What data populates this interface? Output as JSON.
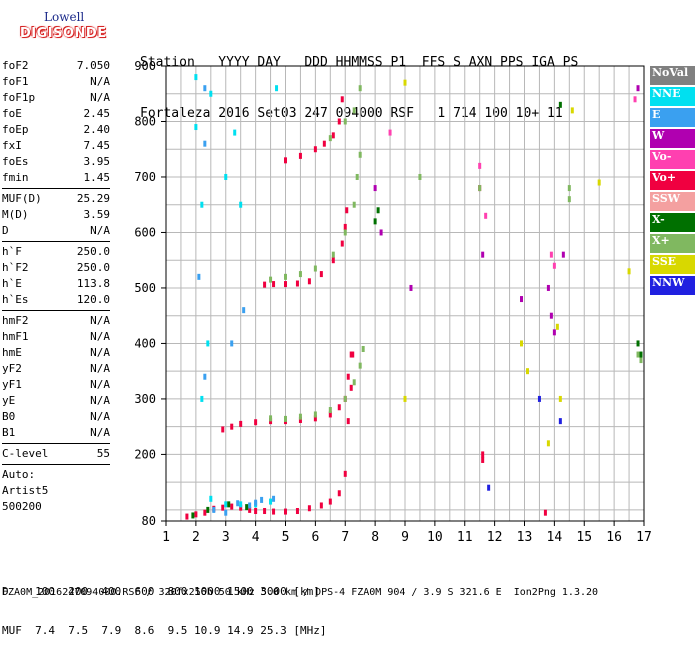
{
  "logo": {
    "line1": "Lowell",
    "line2": "DIGISONDE"
  },
  "header": {
    "row1": "Station   YYYY DAY   DDD HHMMSS P1  FFS S AXN PPS IGA PS",
    "row2": "Fortaleza 2016 Set03 247 094000 RSF   1 714 100 10+ 11"
  },
  "params": [
    {
      "name": "foF2",
      "value": "7.050"
    },
    {
      "name": "foF1",
      "value": "N/A"
    },
    {
      "name": "foF1p",
      "value": "N/A"
    },
    {
      "name": "foE",
      "value": "2.45"
    },
    {
      "name": "foEp",
      "value": "2.40"
    },
    {
      "name": "fxI",
      "value": "7.45"
    },
    {
      "name": "foEs",
      "value": "3.95"
    },
    {
      "name": "fmin",
      "value": "1.45"
    },
    {
      "sep": true
    },
    {
      "name": "MUF(D)",
      "value": "25.29"
    },
    {
      "name": "M(D)",
      "value": "3.59"
    },
    {
      "name": "D",
      "value": "N/A"
    },
    {
      "sep": true
    },
    {
      "name": "h`F",
      "value": "250.0"
    },
    {
      "name": "h`F2",
      "value": "250.0"
    },
    {
      "name": "h`E",
      "value": "113.8"
    },
    {
      "name": "h`Es",
      "value": "120.0"
    },
    {
      "sep": true
    },
    {
      "name": "hmF2",
      "value": "N/A"
    },
    {
      "name": "hmF1",
      "value": "N/A"
    },
    {
      "name": "hmE",
      "value": "N/A"
    },
    {
      "name": "yF2",
      "value": "N/A"
    },
    {
      "name": "yF1",
      "value": "N/A"
    },
    {
      "name": "yE",
      "value": "N/A"
    },
    {
      "name": "B0",
      "value": "N/A"
    },
    {
      "name": "B1",
      "value": "N/A"
    },
    {
      "sep": true
    },
    {
      "name": "C-level",
      "value": "55"
    },
    {
      "sep": true
    },
    {
      "name": "Auto:",
      "value": ""
    },
    {
      "name": "Artist5",
      "value": ""
    },
    {
      "name": "500200",
      "value": ""
    }
  ],
  "legend": [
    {
      "label": "NoVal",
      "color": "#808080"
    },
    {
      "label": "NNE",
      "color": "#00e0f0"
    },
    {
      "label": "E",
      "color": "#3aa0f0"
    },
    {
      "label": "W",
      "color": "#b000b0"
    },
    {
      "label": "Vo-",
      "color": "#ff40b0"
    },
    {
      "label": "Vo+",
      "color": "#f00040"
    },
    {
      "label": "SSW",
      "color": "#f4a0a0"
    },
    {
      "label": "X-",
      "color": "#007000"
    },
    {
      "label": "X+",
      "color": "#80b860"
    },
    {
      "label": "SSE",
      "color": "#d8d800"
    },
    {
      "label": "NNW",
      "color": "#2020e0"
    }
  ],
  "footer": {
    "row1": "D    100  200  400  600  800 1000 1500 3000 [km]",
    "row2": "MUF  7.4  7.5  7.9  8.6  9.5 10.9 14.9 25.3 [MHz]"
  },
  "filename": "FZA0M_2016247094000.RSF / 320fx256h 50 kHz 5.0 km / DPS-4 FZA0M 904 / 3.9 S 321.6 E  Ion2Png 1.3.20",
  "chart_data": {
    "type": "scatter",
    "xlabel": "",
    "ylabel": "",
    "xlim": [
      1,
      17
    ],
    "ylim": [
      80,
      900
    ],
    "xticks": [
      1,
      2,
      3,
      4,
      5,
      6,
      7,
      8,
      9,
      10,
      11,
      12,
      13,
      14,
      15,
      16,
      17
    ],
    "yticks": [
      80,
      200,
      300,
      400,
      500,
      600,
      700,
      800,
      900
    ],
    "x_minor": 0.5,
    "grid": true,
    "series": [
      {
        "name": "Vo+",
        "color": "#f00040",
        "x": [
          1.7,
          2.0,
          2.3,
          2.6,
          2.9,
          3.2,
          3.5,
          3.8,
          4.0,
          4.3,
          4.6,
          5.0,
          5.4,
          5.8,
          6.2,
          6.5,
          6.8,
          7.0,
          7.1,
          7.2,
          7.25,
          2.9,
          3.2,
          3.5,
          4.0,
          4.5,
          5.0,
          5.5,
          6.0,
          6.5,
          6.8,
          7.0,
          7.1,
          7.2,
          4.3,
          4.6,
          5.0,
          5.4,
          5.8,
          6.2,
          6.6,
          6.9,
          7.0,
          7.05,
          5.0,
          5.5,
          6.0,
          6.3,
          6.6,
          6.8,
          6.9,
          11.6,
          11.6,
          11.5,
          13.7
        ],
        "y": [
          88,
          92,
          95,
          102,
          104,
          106,
          104,
          100,
          98,
          98,
          97,
          97,
          98,
          103,
          108,
          115,
          130,
          165,
          260,
          320,
          380,
          245,
          250,
          255,
          258,
          260,
          260,
          262,
          265,
          272,
          285,
          300,
          340,
          380,
          506,
          507,
          507,
          508,
          512,
          525,
          550,
          580,
          610,
          640,
          730,
          738,
          750,
          760,
          775,
          800,
          840,
          190,
          200,
          680,
          95
        ]
      },
      {
        "name": "X+",
        "color": "#80b860",
        "x": [
          4.5,
          5.0,
          5.5,
          6.0,
          6.5,
          7.0,
          7.3,
          7.5,
          7.6,
          4.5,
          5.0,
          5.5,
          6.0,
          6.6,
          7.0,
          7.3,
          7.4,
          7.5,
          6.5,
          7.0,
          7.3,
          7.5,
          9.5,
          11.5,
          14.5,
          14.5,
          16.8,
          16.9
        ],
        "y": [
          265,
          264,
          268,
          272,
          280,
          300,
          330,
          360,
          390,
          515,
          520,
          525,
          535,
          560,
          600,
          650,
          700,
          740,
          770,
          800,
          820,
          860,
          700,
          680,
          660,
          680,
          380,
          370
        ]
      },
      {
        "name": "NNE",
        "color": "#00e0f0",
        "x": [
          2.0,
          2.0,
          2.5,
          3.0,
          3.5,
          4.0,
          4.5,
          2.5,
          3.0,
          3.5,
          2.2,
          2.4,
          2.2,
          4.7,
          3.3
        ],
        "y": [
          880,
          790,
          120,
          110,
          110,
          110,
          115,
          850,
          700,
          650,
          650,
          400,
          300,
          860,
          780
        ]
      },
      {
        "name": "E",
        "color": "#3aa0f0",
        "x": [
          2.3,
          2.3,
          2.6,
          3.0,
          3.4,
          3.8,
          4.0,
          4.2,
          4.6,
          2.1,
          2.3,
          3.2,
          3.6
        ],
        "y": [
          860,
          760,
          100,
          95,
          112,
          108,
          113,
          118,
          120,
          520,
          340,
          400,
          460
        ]
      },
      {
        "name": "X-",
        "color": "#007000",
        "x": [
          1.9,
          2.4,
          3.1,
          3.7,
          8.0,
          8.1,
          14.2,
          16.8,
          16.9
        ],
        "y": [
          90,
          100,
          110,
          105,
          620,
          640,
          830,
          400,
          380
        ]
      },
      {
        "name": "W",
        "color": "#b000b0",
        "x": [
          8.0,
          8.2,
          9.2,
          11.6,
          12.9,
          13.8,
          13.9,
          14.0,
          14.3,
          16.8
        ],
        "y": [
          680,
          600,
          500,
          560,
          480,
          500,
          450,
          420,
          560,
          860
        ]
      },
      {
        "name": "SSE",
        "color": "#d8d800",
        "x": [
          9.0,
          9.0,
          12.9,
          13.1,
          13.8,
          14.1,
          14.2,
          14.6,
          15.5,
          16.5
        ],
        "y": [
          870,
          300,
          400,
          350,
          220,
          430,
          300,
          820,
          690,
          530
        ]
      },
      {
        "name": "Vo-",
        "color": "#ff40b0",
        "x": [
          8.5,
          11.5,
          11.7,
          13.9,
          14.0,
          16.7
        ],
        "y": [
          780,
          720,
          630,
          560,
          540,
          840
        ]
      },
      {
        "name": "NNW",
        "color": "#2020e0",
        "x": [
          11.8,
          13.5,
          14.2
        ],
        "y": [
          140,
          300,
          260
        ]
      }
    ]
  }
}
